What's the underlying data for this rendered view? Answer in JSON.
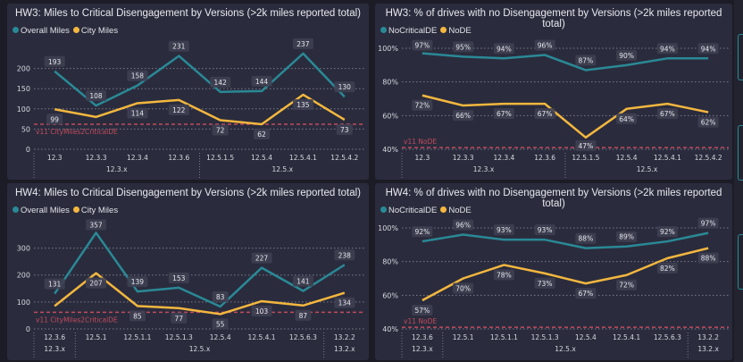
{
  "colors": {
    "teal": "#2a8996",
    "yellow": "#f4b73e",
    "ref": "#c24a5c",
    "grid": "#7a7c8c",
    "text": "#d8d8e0"
  },
  "chart_data": [
    {
      "type": "line",
      "title": "HW3: Miles to Critical Disengagement by Versions (>2k miles reported total)",
      "categories": [
        "12.3",
        "12.3.3",
        "12.3.4",
        "12.3.6",
        "12.5.1.5",
        "12.5.4",
        "12.5.4.1",
        "12.5.4.2"
      ],
      "groups": [
        {
          "label": "12.3.x",
          "count": 4
        },
        {
          "label": "12.5.x",
          "count": 4
        }
      ],
      "series": [
        {
          "name": "Overall Miles",
          "values": [
            193,
            108,
            158,
            231,
            142,
            144,
            237,
            130
          ],
          "labels": [
            "193",
            "108",
            "158",
            "231",
            "142",
            "144",
            "237",
            "130"
          ]
        },
        {
          "name": "City Miles",
          "values": [
            99,
            80,
            114,
            122,
            72,
            62,
            135,
            73
          ],
          "labels": [
            "99",
            "",
            "114",
            "122",
            "72",
            "62",
            "135",
            "73"
          ]
        }
      ],
      "yticks": [
        0,
        50,
        100,
        150,
        200
      ],
      "tick_labels": [
        "0",
        "50",
        "100",
        "150",
        "200"
      ],
      "ylim": [
        0,
        250
      ],
      "reference": {
        "value": 62,
        "label": "v11 CityMiles2CriticalDE"
      },
      "grid": true,
      "legend": "top-left"
    },
    {
      "type": "line",
      "title": "HW3: % of drives with no Disengagement by Versions (>2k miles reported total)",
      "categories": [
        "12.3",
        "12.3.3",
        "12.3.4",
        "12.3.6",
        "12.5.1.5",
        "12.5.4",
        "12.5.4.1",
        "12.5.4.2"
      ],
      "groups": [
        {
          "label": "12.3.x",
          "count": 4
        },
        {
          "label": "12.5.x",
          "count": 4
        }
      ],
      "series": [
        {
          "name": "NoCriticalDE",
          "values": [
            97,
            95,
            94,
            96,
            87,
            90,
            94,
            94
          ],
          "labels": [
            "97%",
            "95%",
            "94%",
            "96%",
            "87%",
            "90%",
            "94%",
            "94%"
          ]
        },
        {
          "name": "NoDE",
          "values": [
            72,
            66,
            67,
            67,
            47,
            64,
            67,
            62
          ],
          "labels": [
            "72%",
            "66%",
            "67%",
            "67%",
            "47%",
            "64%",
            "67%",
            "62%"
          ]
        }
      ],
      "yticks": [
        40,
        60,
        80,
        100
      ],
      "tick_labels": [
        "40%",
        "60%",
        "80%",
        "100%"
      ],
      "ylim": [
        40,
        100
      ],
      "reference": {
        "value": 41,
        "label": "v11 NoDE"
      },
      "grid": true,
      "legend": "top-left"
    },
    {
      "type": "line",
      "title": "HW4: Miles to Critical Disengagement by Versions (>2k miles reported total)",
      "categories": [
        "12.3.6",
        "12.5.1",
        "12.5.1.1",
        "12.5.1.3",
        "12.5.4",
        "12.5.4.1",
        "12.5.6.3",
        "13.2.2"
      ],
      "groups": [
        {
          "label": "12.3.x",
          "count": 1
        },
        {
          "label": "12.5.x",
          "count": 6
        },
        {
          "label": "13.2.x",
          "count": 1
        }
      ],
      "series": [
        {
          "name": "Overall Miles",
          "values": [
            131,
            357,
            139,
            153,
            83,
            227,
            141,
            238
          ],
          "labels": [
            "131",
            "357",
            "139",
            "153",
            "83",
            "227",
            "141",
            "238"
          ]
        },
        {
          "name": "City Miles",
          "values": [
            85,
            207,
            85,
            77,
            55,
            103,
            87,
            134
          ],
          "labels": [
            "",
            "207",
            "85",
            "77",
            "55",
            "103",
            "87",
            "134"
          ]
        }
      ],
      "yticks": [
        0,
        100,
        200,
        300
      ],
      "tick_labels": [
        "0",
        "100",
        "200",
        "300"
      ],
      "ylim": [
        0,
        375
      ],
      "reference": {
        "value": 62,
        "label": "v11 CityMiles2CriticalDE"
      },
      "grid": true,
      "legend": "top-left"
    },
    {
      "type": "line",
      "title": "HW4: % of drives with no Disengagement by Versions (>2k miles reported total)",
      "categories": [
        "12.3.6",
        "12.5.1",
        "12.5.1.1",
        "12.5.1.3",
        "12.5.4",
        "12.5.4.1",
        "12.5.6.3",
        "13.2.2"
      ],
      "groups": [
        {
          "label": "12.3.x",
          "count": 1
        },
        {
          "label": "12.5.x",
          "count": 6
        },
        {
          "label": "13.2.x",
          "count": 1
        }
      ],
      "series": [
        {
          "name": "NoCriticalDE",
          "values": [
            92,
            96,
            93,
            93,
            88,
            89,
            92,
            97
          ],
          "labels": [
            "92%",
            "96%",
            "93%",
            "93%",
            "88%",
            "89%",
            "92%",
            "97%"
          ]
        },
        {
          "name": "NoDE",
          "values": [
            57,
            70,
            78,
            73,
            67,
            72,
            82,
            88
          ],
          "labels": [
            "57%",
            "70%",
            "78%",
            "73%",
            "67%",
            "72%",
            "82%",
            "88%"
          ]
        }
      ],
      "yticks": [
        40,
        60,
        80,
        100
      ],
      "tick_labels": [
        "40%",
        "60%",
        "80%",
        "100%"
      ],
      "ylim": [
        40,
        100
      ],
      "reference": {
        "value": 41,
        "label": "v11 NoDE"
      },
      "grid": true,
      "legend": "top-left"
    }
  ]
}
